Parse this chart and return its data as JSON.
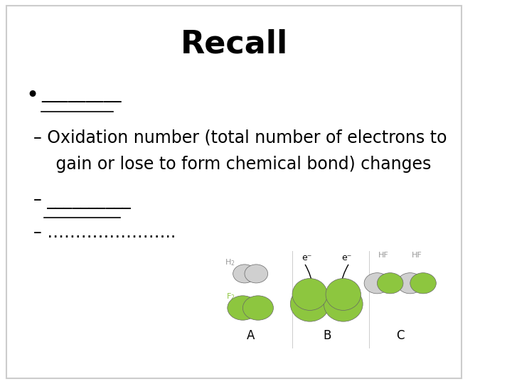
{
  "title": "Recall",
  "title_fontsize": 32,
  "title_fontweight": "bold",
  "bullet_text": "_________",
  "sub1": "– Oxidation number (total number of electrons to",
  "sub1b": "   gain or lose to form chemical bond) changes",
  "sub2": "– __________",
  "sub3": "– …………………..",
  "bg_color": "#ffffff",
  "text_color": "#000000",
  "border_color": "#cccccc",
  "underline_color": "#000000",
  "main_fontsize": 18,
  "sub_fontsize": 17,
  "green": "#8dc63f",
  "light_gray": "#d0d0d0",
  "dark_gray": "#aaaaaa"
}
